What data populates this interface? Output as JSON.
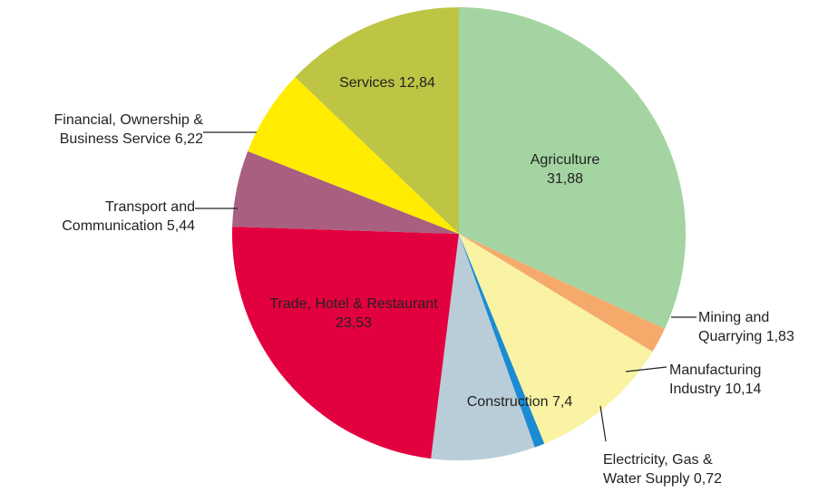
{
  "chart_data": {
    "type": "pie",
    "categories": [
      "Agriculture",
      "Mining and Quarrying",
      "Manufacturing Industry",
      "Electricity, Gas & Water Supply",
      "Construction",
      "Trade, Hotel & Restaurant",
      "Transport and Communication",
      "Financial, Ownership & Business Service",
      "Services"
    ],
    "values": [
      31.88,
      1.83,
      10.14,
      0.72,
      7.4,
      23.53,
      5.44,
      6.22,
      12.84
    ],
    "value_labels": [
      "31,88",
      "1,83",
      "10,14",
      "0,72",
      "7,4",
      "23,53",
      "5,44",
      "6,22",
      "12,84"
    ],
    "colors": [
      "#a3d4a1",
      "#f5aa6c",
      "#f9f3a3",
      "#1b8bd3",
      "#b9cdd9",
      "#e3003f",
      "#a95f80",
      "#ffec00",
      "#bec545"
    ]
  }
}
